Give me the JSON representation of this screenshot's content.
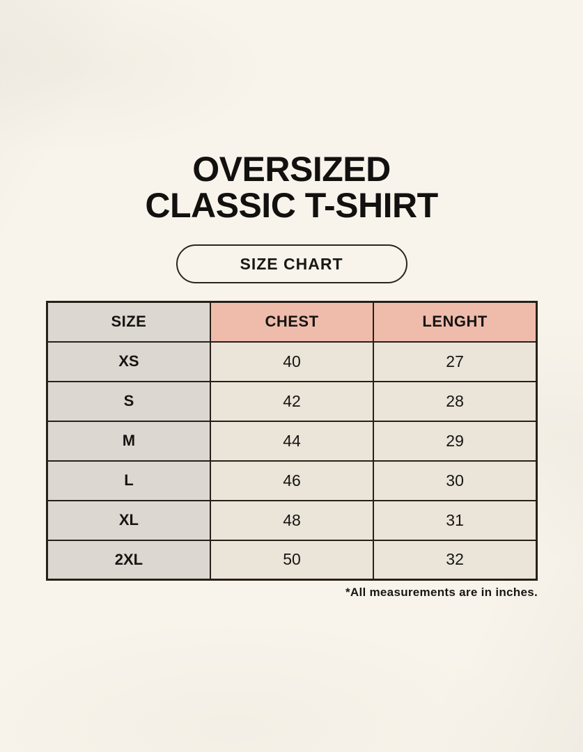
{
  "page": {
    "title_line1": "OVERSIZED",
    "title_line2": "CLASSIC T-SHIRT",
    "badge_label": "SIZE CHART",
    "footnote": "*All measurements are in inches."
  },
  "colors": {
    "background": "#f8f4eb",
    "header_size_bg": "#dcd7d0",
    "header_measure_bg": "#efbcac",
    "cell_bg": "#eae4d9",
    "border": "#262019",
    "text": "#161412"
  },
  "chart_data": {
    "type": "table",
    "title": "OVERSIZED CLASSIC T-SHIRT — SIZE CHART",
    "units": "inches",
    "columns": [
      "SIZE",
      "CHEST",
      "LENGHT"
    ],
    "rows": [
      [
        "XS",
        "40",
        "27"
      ],
      [
        "S",
        "42",
        "28"
      ],
      [
        "M",
        "44",
        "29"
      ],
      [
        "L",
        "46",
        "30"
      ],
      [
        "XL",
        "48",
        "31"
      ],
      [
        "2XL",
        "50",
        "32"
      ]
    ],
    "note": "*All measurements are in inches."
  }
}
